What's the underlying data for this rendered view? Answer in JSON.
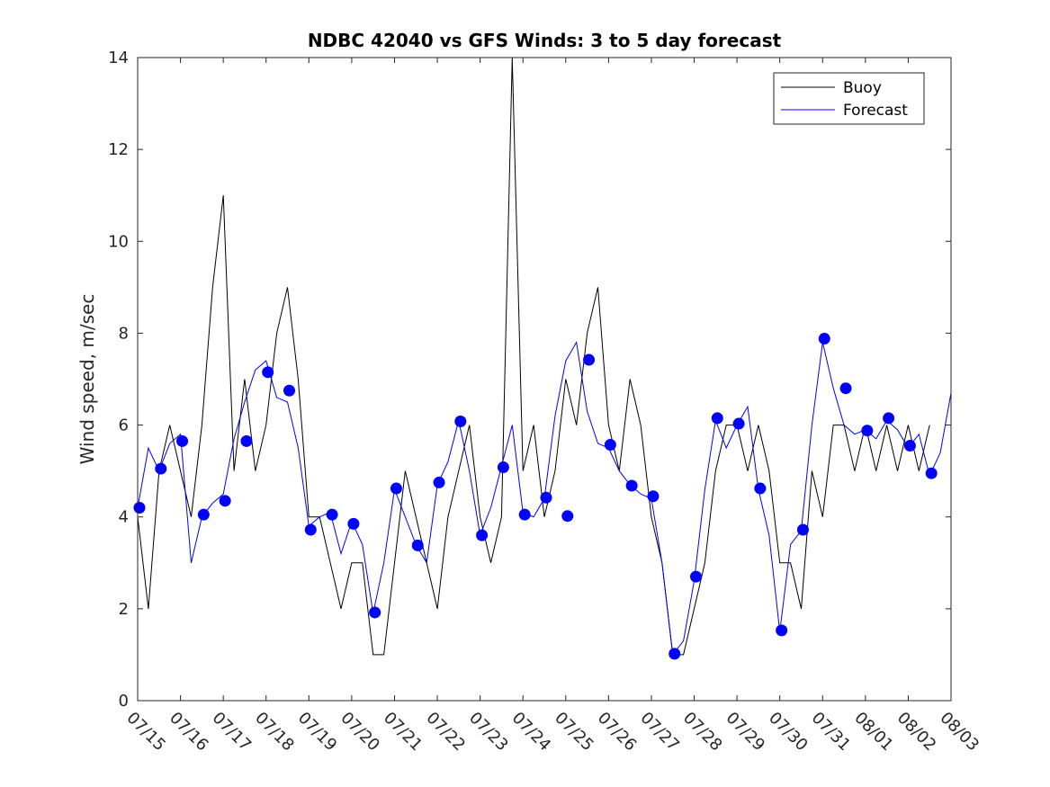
{
  "chart_data": {
    "type": "line",
    "title": "NDBC 42040 vs GFS Winds: 3 to 5 day forecast",
    "xlabel": "",
    "ylabel": "Wind speed, m/sec",
    "ylim": [
      0,
      14
    ],
    "yticks": [
      0,
      2,
      4,
      6,
      8,
      10,
      12,
      14
    ],
    "xlim": [
      "07/15",
      "08/03"
    ],
    "x_tick_labels": [
      "07/15",
      "07/16",
      "07/17",
      "07/18",
      "07/19",
      "07/20",
      "07/21",
      "07/22",
      "07/23",
      "07/24",
      "07/25",
      "07/26",
      "07/27",
      "07/28",
      "07/29",
      "07/30",
      "07/31",
      "08/01",
      "08/02",
      "08/03"
    ],
    "grid": false,
    "legend_position": "top-right",
    "colors": {
      "buoy": "#000000",
      "forecast": "#0000ff"
    },
    "series": [
      {
        "name": "Buoy",
        "x": [
          "07/15 00:00",
          "07/15 06:00",
          "07/15 12:00",
          "07/15 18:00",
          "07/16 00:00",
          "07/16 06:00",
          "07/16 12:00",
          "07/16 18:00",
          "07/17 00:00",
          "07/17 06:00",
          "07/17 12:00",
          "07/17 18:00",
          "07/18 00:00",
          "07/18 06:00",
          "07/18 12:00",
          "07/18 18:00",
          "07/19 00:00",
          "07/19 06:00",
          "07/19 12:00",
          "07/19 18:00",
          "07/20 00:00",
          "07/20 06:00",
          "07/20 12:00",
          "07/20 18:00",
          "07/21 00:00",
          "07/21 06:00",
          "07/21 12:00",
          "07/21 18:00",
          "07/22 00:00",
          "07/22 06:00",
          "07/22 12:00",
          "07/22 18:00",
          "07/23 00:00",
          "07/23 06:00",
          "07/23 12:00",
          "07/23 18:00",
          "07/24 00:00",
          "07/24 06:00",
          "07/24 12:00",
          "07/24 18:00",
          "07/25 00:00",
          "07/25 06:00",
          "07/25 12:00",
          "07/25 18:00",
          "07/26 00:00",
          "07/26 06:00",
          "07/26 12:00",
          "07/26 18:00",
          "07/27 00:00",
          "07/27 06:00",
          "07/27 12:00",
          "07/27 18:00",
          "07/28 00:00",
          "07/28 06:00",
          "07/28 12:00",
          "07/28 18:00",
          "07/29 00:00",
          "07/29 06:00",
          "07/29 12:00",
          "07/29 18:00",
          "07/30 00:00",
          "07/30 06:00",
          "07/30 12:00",
          "07/30 18:00",
          "07/31 00:00",
          "07/31 06:00",
          "07/31 12:00",
          "07/31 18:00",
          "08/01 00:00",
          "08/01 06:00",
          "08/01 12:00",
          "08/01 18:00",
          "08/02 00:00",
          "08/02 06:00",
          "08/02 12:00"
        ],
        "y": [
          4,
          2,
          5,
          6,
          5,
          4,
          6,
          9,
          11,
          5,
          7,
          5,
          6,
          8,
          9,
          7,
          4,
          4,
          3,
          2,
          3,
          3,
          1,
          1,
          3,
          5,
          4,
          3,
          2,
          4,
          5,
          6,
          4,
          3,
          4,
          14,
          5,
          6,
          4,
          5,
          7,
          6,
          8,
          9,
          6,
          5,
          7,
          6,
          4,
          3,
          1,
          1,
          2,
          3,
          5,
          6,
          6,
          5,
          6,
          5,
          3,
          3,
          2,
          5,
          4,
          6,
          6,
          5,
          6,
          5,
          6,
          5,
          6,
          5,
          6
        ]
      },
      {
        "name": "Forecast",
        "x": [
          "07/15 00:00",
          "07/15 06:00",
          "07/15 12:00",
          "07/15 18:00",
          "07/16 00:00",
          "07/16 06:00",
          "07/16 12:00",
          "07/16 18:00",
          "07/17 00:00",
          "07/17 06:00",
          "07/17 12:00",
          "07/17 18:00",
          "07/18 00:00",
          "07/18 06:00",
          "07/18 12:00",
          "07/18 18:00",
          "07/19 00:00",
          "07/19 06:00",
          "07/19 12:00",
          "07/19 18:00",
          "07/20 00:00",
          "07/20 06:00",
          "07/20 12:00",
          "07/20 18:00",
          "07/21 00:00",
          "07/21 06:00",
          "07/21 12:00",
          "07/21 18:00",
          "07/22 00:00",
          "07/22 06:00",
          "07/22 12:00",
          "07/22 18:00",
          "07/23 00:00",
          "07/23 06:00",
          "07/23 12:00",
          "07/23 18:00",
          "07/24 00:00",
          "07/24 06:00",
          "07/24 12:00",
          "07/24 18:00",
          "07/25 00:00",
          "07/25 06:00",
          "07/25 12:00",
          "07/25 18:00",
          "07/26 00:00",
          "07/26 06:00",
          "07/26 12:00",
          "07/26 18:00",
          "07/27 00:00",
          "07/27 06:00",
          "07/27 12:00",
          "07/27 18:00",
          "07/28 00:00",
          "07/28 06:00",
          "07/28 12:00",
          "07/28 18:00",
          "07/29 00:00",
          "07/29 06:00",
          "07/29 12:00",
          "07/29 18:00",
          "07/30 00:00",
          "07/30 06:00",
          "07/30 12:00",
          "07/30 18:00",
          "07/31 00:00",
          "07/31 06:00",
          "07/31 12:00",
          "07/31 18:00",
          "08/01 00:00",
          "08/01 06:00",
          "08/01 12:00",
          "08/01 18:00",
          "08/02 00:00",
          "08/02 06:00",
          "08/02 12:00",
          "08/02 18:00",
          "08/03 00:00"
        ],
        "y": [
          4.2,
          5.5,
          5.0,
          5.6,
          5.8,
          3.0,
          4.0,
          4.3,
          4.5,
          5.7,
          6.5,
          7.2,
          7.4,
          6.6,
          6.5,
          5.5,
          3.8,
          4.0,
          4.1,
          3.2,
          3.9,
          3.4,
          1.9,
          3.0,
          4.6,
          4.0,
          3.4,
          3.0,
          4.7,
          5.2,
          6.1,
          5.0,
          3.6,
          4.2,
          5.1,
          6.0,
          4.1,
          4.0,
          4.4,
          6.2,
          7.4,
          7.8,
          6.3,
          5.6,
          5.5,
          5.0,
          4.7,
          4.5,
          4.4,
          3.0,
          1.0,
          1.3,
          2.6,
          4.6,
          6.1,
          5.5,
          6.0,
          6.4,
          4.6,
          3.6,
          1.5,
          3.4,
          3.7,
          6.0,
          7.8,
          6.8,
          6.0,
          5.8,
          5.9,
          5.7,
          6.1,
          5.9,
          5.5,
          5.8,
          4.9,
          5.4,
          6.7
        ]
      },
      {
        "name": "",
        "type": "scatter",
        "x": [
          "07/15 01:00",
          "07/15 13:00",
          "07/16 01:00",
          "07/16 13:00",
          "07/17 01:00",
          "07/17 13:00",
          "07/18 01:00",
          "07/18 13:00",
          "07/19 01:00",
          "07/19 13:00",
          "07/20 01:00",
          "07/20 13:00",
          "07/21 01:00",
          "07/21 13:00",
          "07/22 01:00",
          "07/22 13:00",
          "07/23 01:00",
          "07/23 13:00",
          "07/24 01:00",
          "07/24 13:00",
          "07/25 01:00",
          "07/25 13:00",
          "07/26 01:00",
          "07/26 13:00",
          "07/27 01:00",
          "07/27 13:00",
          "07/28 01:00",
          "07/28 13:00",
          "07/29 01:00",
          "07/29 13:00",
          "07/30 01:00",
          "07/30 13:00",
          "07/31 01:00",
          "07/31 13:00",
          "08/01 01:00",
          "08/01 13:00",
          "08/02 01:00",
          "08/02 13:00"
        ],
        "y": [
          4.2,
          5.05,
          5.65,
          4.05,
          4.35,
          5.65,
          7.15,
          6.75,
          3.72,
          4.05,
          3.85,
          1.92,
          4.62,
          3.38,
          4.75,
          6.08,
          3.6,
          5.08,
          4.05,
          4.42,
          4.02,
          7.42,
          5.57,
          4.68,
          4.45,
          1.02,
          2.7,
          6.15,
          6.03,
          4.62,
          1.53,
          3.72,
          7.88,
          6.8,
          5.88,
          6.15,
          5.55,
          4.95
        ]
      }
    ]
  }
}
